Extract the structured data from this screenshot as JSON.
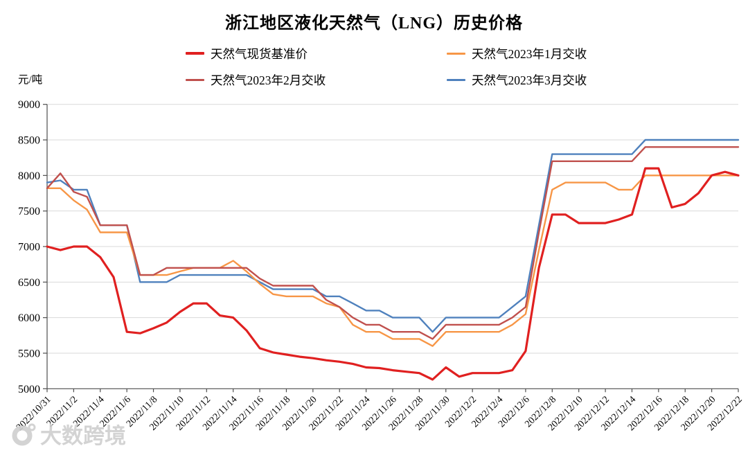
{
  "header": {
    "title": "浙江地区液化天然气（LNG）历史价格"
  },
  "watermark": {
    "text": "大数跨境"
  },
  "chart_data": {
    "type": "line",
    "title": "浙江地区液化天然气（LNG）历史价格",
    "ylabel": "元/吨",
    "xlabel": "",
    "ylim": [
      5000,
      9000
    ],
    "y_ticks": [
      9000,
      8500,
      8000,
      7500,
      7000,
      6500,
      6000,
      5500,
      5000
    ],
    "grid": true,
    "legend_position": "top",
    "x_tick_every": 2,
    "x": [
      "2022/10/31",
      "2022/11/1",
      "2022/11/2",
      "2022/11/3",
      "2022/11/4",
      "2022/11/5",
      "2022/11/6",
      "2022/11/7",
      "2022/11/8",
      "2022/11/9",
      "2022/11/10",
      "2022/11/11",
      "2022/11/12",
      "2022/11/13",
      "2022/11/14",
      "2022/11/15",
      "2022/11/16",
      "2022/11/17",
      "2022/11/18",
      "2022/11/19",
      "2022/11/20",
      "2022/11/21",
      "2022/11/22",
      "2022/11/23",
      "2022/11/24",
      "2022/11/25",
      "2022/11/26",
      "2022/11/27",
      "2022/11/28",
      "2022/11/29",
      "2022/11/30",
      "2022/12/1",
      "2022/12/2",
      "2022/12/3",
      "2022/12/4",
      "2022/12/5",
      "2022/12/6",
      "2022/12/7",
      "2022/12/8",
      "2022/12/9",
      "2022/12/10",
      "2022/12/11",
      "2022/12/12",
      "2022/12/13",
      "2022/12/14",
      "2022/12/15",
      "2022/12/16",
      "2022/12/17",
      "2022/12/18",
      "2022/12/19",
      "2022/12/20",
      "2022/12/21",
      "2022/12/22"
    ],
    "series": [
      {
        "name": "天然气现货基准价",
        "color": "#e02020",
        "width": 3.2,
        "z": 4,
        "values": [
          7000,
          6950,
          7000,
          7000,
          6850,
          6570,
          5800,
          5780,
          5850,
          5930,
          6080,
          6200,
          6200,
          6030,
          6000,
          5820,
          5570,
          5510,
          5480,
          5450,
          5430,
          5400,
          5380,
          5350,
          5300,
          5290,
          5260,
          5240,
          5220,
          5130,
          5300,
          5170,
          5220,
          5220,
          5220,
          5260,
          5530,
          6700,
          7450,
          7450,
          7330,
          7330,
          7330,
          7380,
          7450,
          8100,
          8100,
          7550,
          7600,
          7750,
          8000,
          8050,
          8000
        ]
      },
      {
        "name": "天然气2023年1月交收",
        "color": "#f79646",
        "width": 2.4,
        "z": 2,
        "values": [
          7820,
          7820,
          7650,
          7520,
          7200,
          7200,
          7200,
          6600,
          6600,
          6600,
          6650,
          6700,
          6700,
          6700,
          6800,
          6650,
          6475,
          6330,
          6300,
          6300,
          6300,
          6200,
          6150,
          5900,
          5800,
          5800,
          5700,
          5700,
          5700,
          5600,
          5800,
          5800,
          5800,
          5800,
          5800,
          5900,
          6050,
          6950,
          7800,
          7900,
          7900,
          7900,
          7900,
          7800,
          7800,
          8000,
          8000,
          8000,
          8000,
          8000,
          8000,
          8000,
          8000
        ]
      },
      {
        "name": "天然气2023年2月交收",
        "color": "#c0504d",
        "width": 2.4,
        "z": 3,
        "values": [
          7820,
          8030,
          7770,
          7700,
          7300,
          7300,
          7300,
          6600,
          6600,
          6700,
          6700,
          6700,
          6700,
          6700,
          6700,
          6700,
          6550,
          6450,
          6450,
          6450,
          6450,
          6250,
          6150,
          6000,
          5900,
          5900,
          5800,
          5800,
          5800,
          5700,
          5900,
          5900,
          5900,
          5900,
          5900,
          6000,
          6150,
          7200,
          8200,
          8200,
          8200,
          8200,
          8200,
          8200,
          8200,
          8400,
          8400,
          8400,
          8400,
          8400,
          8400,
          8400,
          8400
        ]
      },
      {
        "name": "天然气2023年3月交收",
        "color": "#4f81bd",
        "width": 2.4,
        "z": 1,
        "values": [
          7900,
          7930,
          7800,
          7800,
          7300,
          7300,
          7300,
          6500,
          6500,
          6500,
          6600,
          6600,
          6600,
          6600,
          6600,
          6600,
          6500,
          6400,
          6400,
          6400,
          6400,
          6300,
          6300,
          6200,
          6100,
          6100,
          6000,
          6000,
          6000,
          5800,
          6000,
          6000,
          6000,
          6000,
          6000,
          6150,
          6300,
          7300,
          8300,
          8300,
          8300,
          8300,
          8300,
          8300,
          8300,
          8500,
          8500,
          8500,
          8500,
          8500,
          8500,
          8500,
          8500
        ]
      }
    ],
    "colors": {
      "grid": "#d9d9d9",
      "axis": "#4d4d4d"
    }
  }
}
